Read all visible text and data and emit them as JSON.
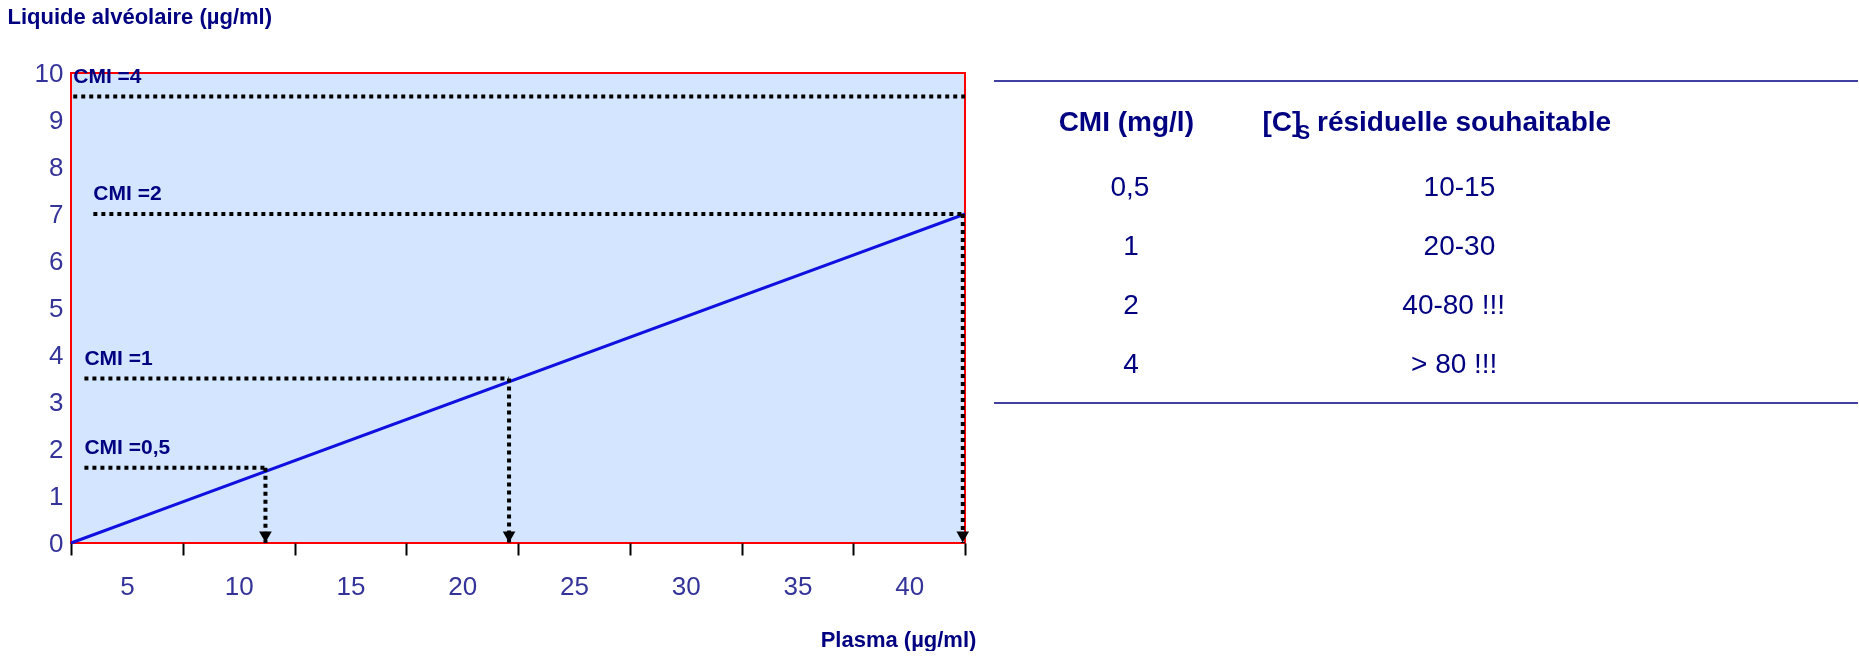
{
  "chart_data": [
    {
      "type": "line",
      "xlabel": "Plasma (µg/ml)",
      "ylabel": "Liquide alvéolaire (µg/ml)",
      "xlim": [
        2.5,
        42.5
      ],
      "ylim": [
        0,
        10
      ],
      "xticks": [
        {
          "value": 2.5,
          "label": null
        },
        5,
        {
          "value": 7.5,
          "label": null
        },
        10,
        {
          "value": 12.5,
          "label": null
        },
        15,
        {
          "value": 17.5,
          "label": null
        },
        20,
        {
          "value": 22.5,
          "label": null
        },
        25,
        {
          "value": 27.5,
          "label": null
        },
        30,
        {
          "value": 32.5,
          "label": null
        },
        35,
        {
          "value": 37.5,
          "label": null
        },
        40,
        {
          "value": 42.5,
          "label": null
        }
      ],
      "yticks": [
        0,
        1,
        2,
        3,
        4,
        5,
        6,
        7,
        8,
        9,
        10
      ],
      "grid": false,
      "marker": "none",
      "series": [
        {
          "color": "#1010e0",
          "line_style": "solid",
          "x": [
            2.5,
            42.5
          ],
          "values": [
            0,
            7
          ]
        },
        {
          "name": "CMI =0,5",
          "color": "#000000",
          "line_style": "dotted",
          "x": [
            3.1,
            11.2
          ],
          "values": [
            1.6,
            1.6
          ]
        },
        {
          "name": "CMI =1",
          "color": "#000000",
          "line_style": "dotted",
          "x": [
            3.1,
            22.1
          ],
          "values": [
            3.5,
            3.5
          ]
        },
        {
          "name": "CMI =2",
          "color": "#000000",
          "line_style": "dotted",
          "x": [
            3.5,
            42.4
          ],
          "values": [
            7,
            7
          ]
        },
        {
          "name": "CMI =4",
          "color": "#000000",
          "line_style": "dotted",
          "x": [
            2.6,
            42.5
          ],
          "values": [
            9.5,
            9.5
          ]
        }
      ]
    },
    {
      "type": "other",
      "annotations": [
        "CMI (mg/l)",
        "[C]$_{S}$ résiduelle souhaitable",
        "0,5",
        "10-15",
        "1",
        "20-30",
        "2",
        "40-80 !!!",
        "4",
        "> 80 !!!"
      ]
    }
  ]
}
